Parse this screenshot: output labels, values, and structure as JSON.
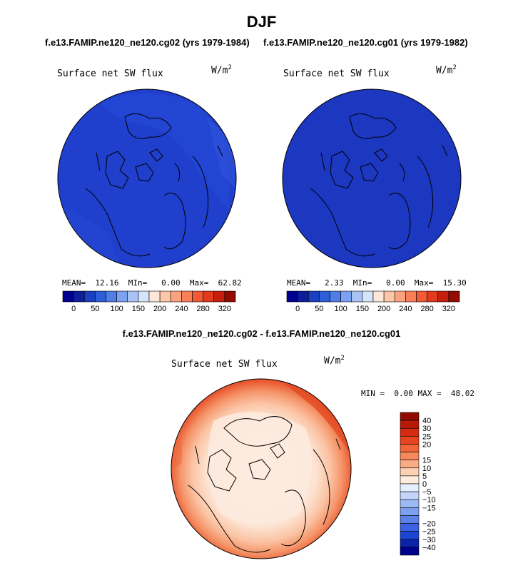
{
  "title": "DJF",
  "panels": [
    {
      "subtitle": "f.e13.FAMIP.ne120_ne120.cg02 (yrs 1979-1984)",
      "label": "Surface net SW flux",
      "unit": "W/m",
      "unit_exp": "2",
      "stats": {
        "mean_label": "MEAN=",
        "mean": "12.16",
        "min_label": "MIn=",
        "min": "0.00",
        "max_label": "Max=",
        "max": "62.82"
      }
    },
    {
      "subtitle": "f.e13.FAMIP.ne120_ne120.cg01 (yrs 1979-1982)",
      "label": "Surface net SW flux",
      "unit": "W/m",
      "unit_exp": "2",
      "stats": {
        "mean_label": "MEAN=",
        "mean": "2.33",
        "min_label": "MIn=",
        "min": "0.00",
        "max_label": "Max=",
        "max": "15.30"
      }
    }
  ],
  "abs_colorbar": {
    "colors": [
      "#00008f",
      "#0c1e9c",
      "#1a3fbf",
      "#2f5fd8",
      "#4f7fe6",
      "#7aa2f0",
      "#a9c4f6",
      "#d6e4fa",
      "#fde7d8",
      "#fcc6a8",
      "#fba27e",
      "#f87f58",
      "#f25b36",
      "#e23a1d",
      "#c5200e",
      "#900c00"
    ],
    "tick_labels": [
      "0",
      "50",
      "100",
      "150",
      "200",
      "240",
      "280",
      "320"
    ]
  },
  "diff": {
    "title": "f.e13.FAMIP.ne120_ne120.cg02 - f.e13.FAMIP.ne120_ne120.cg01",
    "label": "Surface net SW flux",
    "unit": "W/m",
    "unit_exp": "2",
    "stats": {
      "min_label": "MIN =",
      "min": "0.00",
      "max_label": "MAX =",
      "max": "48.02"
    }
  },
  "diff_colorbar": {
    "colors_top_to_bottom": [
      "#900c00",
      "#b81a08",
      "#d72a12",
      "#e6431e",
      "#f06638",
      "#f6895b",
      "#f9ab84",
      "#fcd0b3",
      "#fdebdd",
      "#e6efff",
      "#c3d6fa",
      "#9cbaf4",
      "#7d9ff0",
      "#5c82ea",
      "#3b62e2",
      "#1d45d4",
      "#0a24a8",
      "#00008f"
    ],
    "labels_top_to_bottom": [
      "40",
      "30",
      "25",
      "20",
      "15",
      "10",
      "5",
      "0",
      "−5",
      "−10",
      "−15",
      "−20",
      "−25",
      "−30",
      "−40"
    ]
  },
  "legend_colors": {
    "ocean_low": "#1a3fcf",
    "land_line": "#000000"
  }
}
